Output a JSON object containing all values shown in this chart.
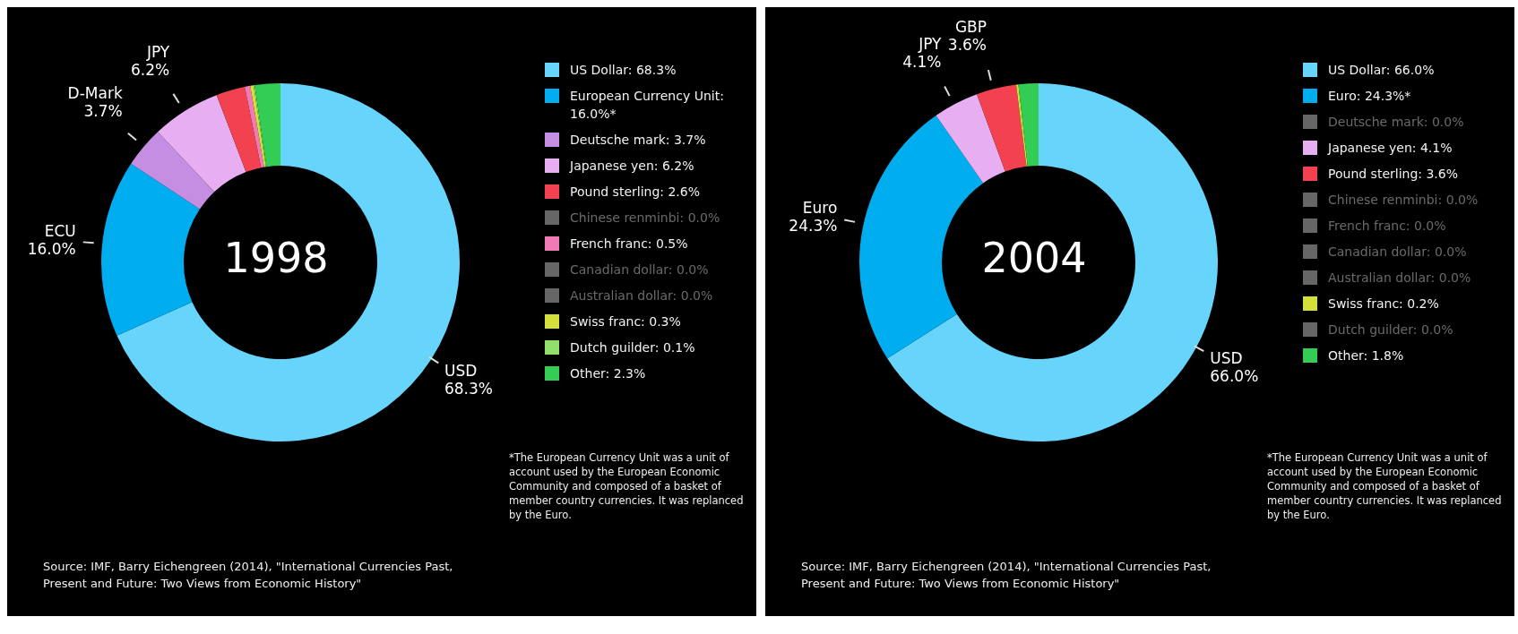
{
  "chart_data": [
    {
      "type": "donut",
      "title": "1998",
      "categories": [
        "US Dollar: 68.3%",
        "European Currency Unit: 16.0%*",
        "Deutsche mark: 3.7%",
        "Japanese yen: 6.2%",
        "Pound sterling: 2.6%",
        "Chinese renminbi: 0.0%",
        "French franc: 0.5%",
        "Canadian dollar: 0.0%",
        "Australian dollar: 0.0%",
        "Swiss franc: 0.3%",
        "Dutch guilder: 0.1%",
        "Other: 2.3%"
      ],
      "values": [
        68.3,
        16.0,
        3.7,
        6.2,
        2.6,
        0.0,
        0.5,
        0.0,
        0.0,
        0.3,
        0.1,
        2.3
      ],
      "colors": [
        "#66d4fb",
        "#00aeef",
        "#c68ee3",
        "#e8aef2",
        "#f2424f",
        "#666666",
        "#f07ab4",
        "#666666",
        "#666666",
        "#d4e03a",
        "#8ee06a",
        "#33cc55"
      ],
      "value_labels": [
        "USD\n68.3%",
        "ECU\n16.0%",
        "D-Mark\n3.7%",
        "JPY\n6.2%",
        null,
        null,
        null,
        null,
        null,
        null,
        null,
        null
      ],
      "legend": "right",
      "annotations": [
        "*The European Currency Unit was a unit of account used by the European Economic Community and composed of a basket of member country currencies. It was replanced by the Euro.",
        "Source: IMF, Barry Eichengreen (2014), \"International Currencies Past, Present and Future: Two Views from Economic History\""
      ]
    },
    {
      "type": "donut",
      "title": "2004",
      "categories": [
        "US Dollar: 66.0%",
        "Euro: 24.3%*",
        "Deutsche mark: 0.0%",
        "Japanese yen: 4.1%",
        "Pound sterling: 3.6%",
        "Chinese renminbi: 0.0%",
        "French franc: 0.0%",
        "Canadian dollar: 0.0%",
        "Australian dollar: 0.0%",
        "Swiss franc: 0.2%",
        "Dutch guilder: 0.0%",
        "Other: 1.8%"
      ],
      "values": [
        66.0,
        24.3,
        0.0,
        4.1,
        3.6,
        0.0,
        0.0,
        0.0,
        0.0,
        0.2,
        0.0,
        1.8
      ],
      "colors": [
        "#66d4fb",
        "#00aeef",
        "#666666",
        "#e8aef2",
        "#f2424f",
        "#666666",
        "#666666",
        "#666666",
        "#666666",
        "#d4e03a",
        "#666666",
        "#33cc55"
      ],
      "value_labels": [
        "USD\n66.0%",
        "Euro\n24.3%",
        null,
        "JPY\n4.1%",
        "GBP\n3.6%",
        null,
        null,
        null,
        null,
        null,
        null,
        null
      ],
      "legend": "right",
      "annotations": [
        "*The European Currency Unit was a unit of account used by the European Economic Community and composed of a basket of member country currencies. It was replanced by the Euro.",
        "Source: IMF, Barry Eichengreen (2014), \"International Currencies Past, Present and Future: Two Views from Economic History\""
      ]
    }
  ]
}
